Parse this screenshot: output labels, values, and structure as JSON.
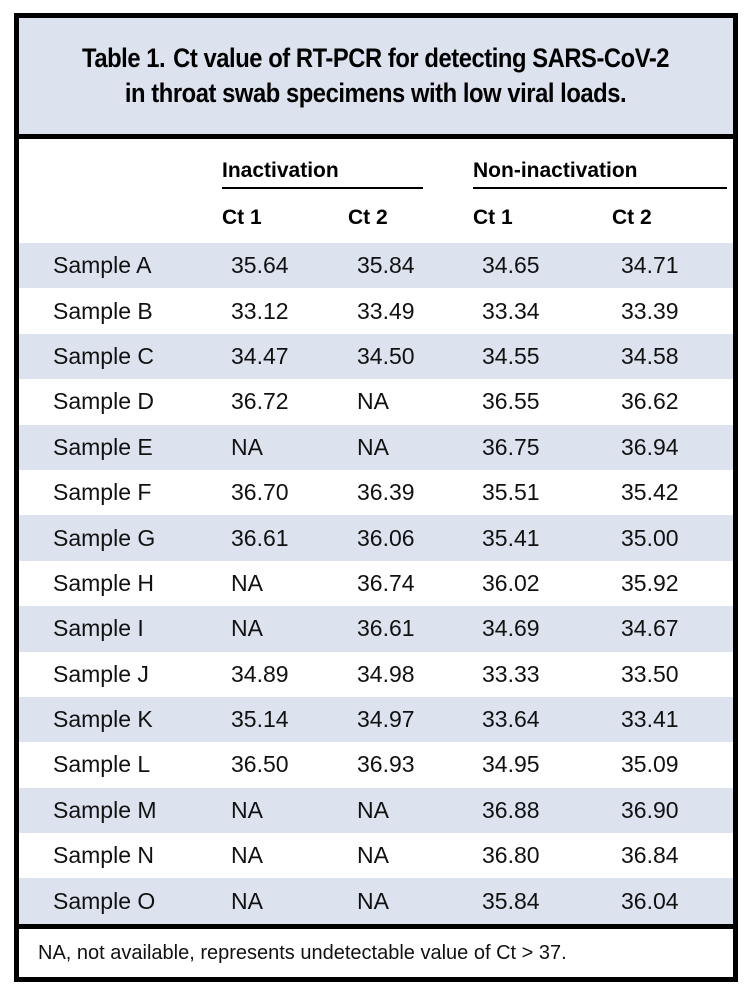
{
  "title": {
    "label": "Table 1.",
    "line1": "Ct value of RT-PCR for detecting SARS-CoV-2",
    "line2": "in throat swab specimens with low viral loads."
  },
  "table": {
    "groups": [
      {
        "label": "Inactivation"
      },
      {
        "label": "Non-inactivation"
      }
    ],
    "subheaders": [
      "Ct 1",
      "Ct 2",
      "Ct 1",
      "Ct 2"
    ],
    "rows": [
      {
        "sample": "Sample A",
        "values": [
          "35.64",
          "35.84",
          "34.65",
          "34.71"
        ]
      },
      {
        "sample": "Sample B",
        "values": [
          "33.12",
          "33.49",
          "33.34",
          "33.39"
        ]
      },
      {
        "sample": "Sample C",
        "values": [
          "34.47",
          "34.50",
          "34.55",
          "34.58"
        ]
      },
      {
        "sample": "Sample D",
        "values": [
          "36.72",
          "NA",
          "36.55",
          "36.62"
        ]
      },
      {
        "sample": "Sample E",
        "values": [
          "NA",
          "NA",
          "36.75",
          "36.94"
        ]
      },
      {
        "sample": "Sample F",
        "values": [
          "36.70",
          "36.39",
          "35.51",
          "35.42"
        ]
      },
      {
        "sample": "Sample G",
        "values": [
          "36.61",
          "36.06",
          "35.41",
          "35.00"
        ]
      },
      {
        "sample": "Sample H",
        "values": [
          "NA",
          "36.74",
          "36.02",
          "35.92"
        ]
      },
      {
        "sample": "Sample I",
        "values": [
          "NA",
          "36.61",
          "34.69",
          "34.67"
        ]
      },
      {
        "sample": "Sample J",
        "values": [
          "34.89",
          "34.98",
          "33.33",
          "33.50"
        ]
      },
      {
        "sample": "Sample K",
        "values": [
          "35.14",
          "34.97",
          "33.64",
          "33.41"
        ]
      },
      {
        "sample": "Sample L",
        "values": [
          "36.50",
          "36.93",
          "34.95",
          "35.09"
        ]
      },
      {
        "sample": "Sample M",
        "values": [
          "NA",
          "NA",
          "36.88",
          "36.90"
        ]
      },
      {
        "sample": "Sample N",
        "values": [
          "NA",
          "NA",
          "36.80",
          "36.84"
        ]
      },
      {
        "sample": "Sample O",
        "values": [
          "NA",
          "NA",
          "35.84",
          "36.04"
        ]
      }
    ]
  },
  "footnote": "NA, not available, represents undetectable value of Ct > 37.",
  "colors": {
    "stripe_blue": "#dce3ef",
    "border_black": "#000000"
  }
}
